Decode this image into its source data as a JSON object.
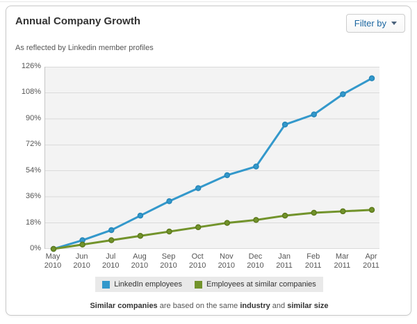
{
  "header": {
    "title": "Annual Company Growth",
    "filter_button": {
      "label": "Filter by"
    }
  },
  "subtitle": "As reflected by Linkedin member profiles",
  "chart_data": {
    "type": "line",
    "title": "Annual Company Growth",
    "subtitle": "As reflected by Linkedin member profiles",
    "categories": [
      "May 2010",
      "Jun 2010",
      "Jul 2010",
      "Aug 2010",
      "Sep 2010",
      "Oct 2010",
      "Nov 2010",
      "Dec 2010",
      "Jan 2011",
      "Feb 2011",
      "Mar 2011",
      "Apr 2011"
    ],
    "series": [
      {
        "name": "LinkedIn employees",
        "color": "#3398cb",
        "point_color": "#2687b9",
        "values": [
          0,
          6,
          13,
          23,
          33,
          42,
          51,
          57,
          86,
          93,
          107,
          118
        ]
      },
      {
        "name": "Employees at similar companies",
        "color": "#72932b",
        "point_color": "#5e7a1d",
        "values": [
          0,
          3,
          6,
          9,
          12,
          15,
          18,
          20,
          23,
          25,
          26,
          27
        ]
      }
    ],
    "y_ticks": [
      0,
      18,
      36,
      54,
      72,
      90,
      108,
      126
    ],
    "y_tick_suffix": "%",
    "ylim": [
      0,
      126
    ],
    "grid": true,
    "grid_color": "#dadada",
    "plot_bg": "#f3f3f3",
    "legend_position": "bottom"
  },
  "footer": {
    "segments": [
      {
        "text": "Similar companies",
        "bold": true
      },
      {
        "text": " are based on the same ",
        "bold": false
      },
      {
        "text": "industry",
        "bold": true
      },
      {
        "text": " and ",
        "bold": false
      },
      {
        "text": "similar size",
        "bold": true
      }
    ]
  }
}
